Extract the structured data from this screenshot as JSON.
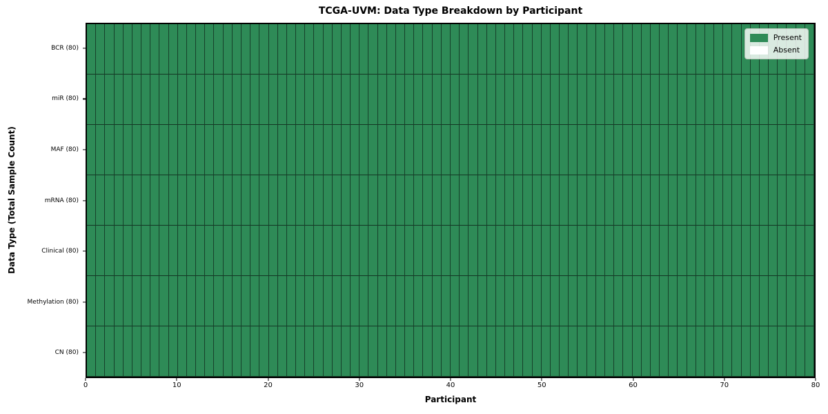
{
  "chart_data": {
    "type": "heatmap",
    "title": "TCGA-UVM: Data Type Breakdown by Participant",
    "xlabel": "Participant",
    "ylabel": "Data Type (Total Sample Count)",
    "participants": 80,
    "xlim": [
      0,
      80
    ],
    "x_ticks": [
      0,
      10,
      20,
      30,
      40,
      50,
      60,
      70,
      80
    ],
    "rows": [
      {
        "label": "BCR (80)",
        "present_count": 80,
        "absent_count": 0
      },
      {
        "label": "miR (80)",
        "present_count": 80,
        "absent_count": 0
      },
      {
        "label": "MAF (80)",
        "present_count": 80,
        "absent_count": 0
      },
      {
        "label": "mRNA (80)",
        "present_count": 80,
        "absent_count": 0
      },
      {
        "label": "Clinical (80)",
        "present_count": 80,
        "absent_count": 0
      },
      {
        "label": "Methylation (80)",
        "present_count": 80,
        "absent_count": 0
      },
      {
        "label": "CN (80)",
        "present_count": 80,
        "absent_count": 0
      }
    ],
    "legend": [
      {
        "label": "Present",
        "color": "#2E8B57"
      },
      {
        "label": "Absent",
        "color": "#FFFFFF"
      }
    ],
    "colors": {
      "present": "#2E8B57",
      "absent": "#FFFFFF",
      "cell_border": "#14271C",
      "spine": "#000000"
    },
    "layout_hints": {
      "grid": "cell borders on all cells",
      "legend_position": "upper right inside axes"
    }
  }
}
